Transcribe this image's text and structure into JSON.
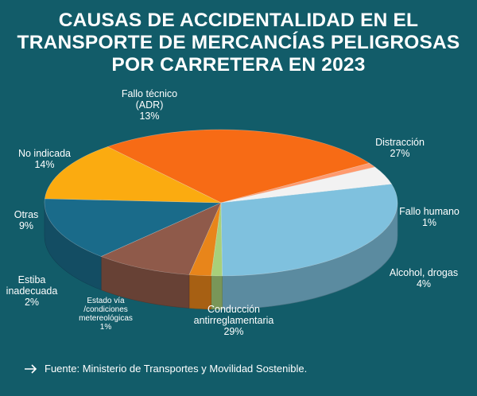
{
  "title_lines": [
    "CAUSAS DE ACCIDENTALIDAD EN EL",
    "TRANSPORTE DE MERCANCÍAS PELIGROSAS",
    "POR CARRETERA EN 2023"
  ],
  "source": "Fuente: Ministerio de Transportes y Movilidad Sostenible.",
  "chart_data": {
    "type": "pie",
    "title": "CAUSAS DE ACCIDENTALIDAD EN EL TRANSPORTE DE MERCANCÍAS PELIGROSAS POR CARRETERA EN 2023",
    "slices": [
      {
        "label": [
          "Distracción"
        ],
        "value": 27,
        "value_label": "27%",
        "color": "#f76b15"
      },
      {
        "label": [
          "Fallo humano"
        ],
        "value": 1,
        "value_label": "1%",
        "color": "#ff9a6e"
      },
      {
        "label": [
          "Alcohol, drogas"
        ],
        "value": 4,
        "value_label": "4%",
        "color": "#f2f2f2"
      },
      {
        "label": [
          "Conducción",
          "antirreglamentaria"
        ],
        "value": 29,
        "value_label": "29%",
        "color": "#7fc1de"
      },
      {
        "label": [
          "Estado vía",
          "/condiciones",
          "metereológicas"
        ],
        "value": 1,
        "value_label": "1%",
        "color": "#a8d07a"
      },
      {
        "label": [
          "Estiba",
          "inadecuada"
        ],
        "value": 2,
        "value_label": "2%",
        "color": "#e8851a"
      },
      {
        "label": [
          "Otras"
        ],
        "value": 9,
        "value_label": "9%",
        "color": "#8f5a4a"
      },
      {
        "label": [
          "No indicada"
        ],
        "value": 14,
        "value_label": "14%",
        "color": "#1a6b8a"
      },
      {
        "label": [
          "Fallo técnico",
          "(ADR)"
        ],
        "value": 13,
        "value_label": "13%",
        "color": "#fbab10"
      }
    ]
  }
}
